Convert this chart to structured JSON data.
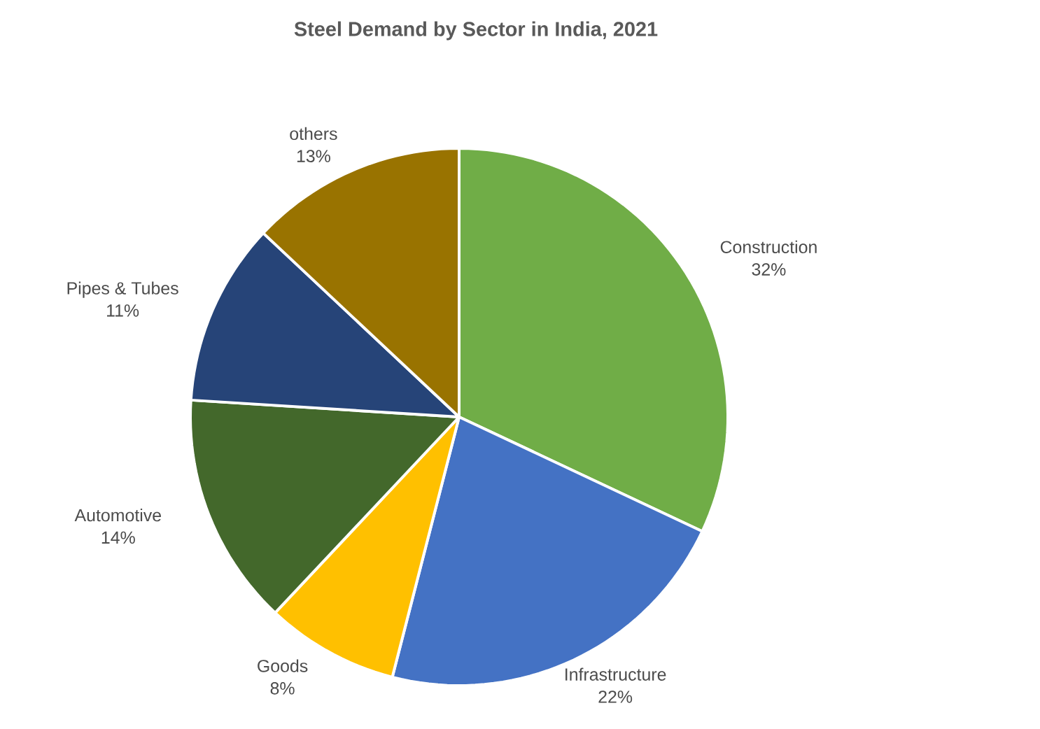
{
  "chart_data": {
    "type": "pie",
    "title": "Steel Demand by Sector in India, 2021",
    "categories": [
      "Construction",
      "Infrastructure",
      "Goods",
      "Automotive",
      "Pipes & Tubes",
      "others"
    ],
    "values": [
      32,
      22,
      8,
      14,
      11,
      13
    ],
    "value_labels": [
      "32%",
      "22%",
      "8%",
      "14%",
      "11%",
      "13%"
    ],
    "colors": [
      "#70ad47",
      "#4472c4",
      "#ffc000",
      "#43682b",
      "#264478",
      "#997300"
    ]
  }
}
